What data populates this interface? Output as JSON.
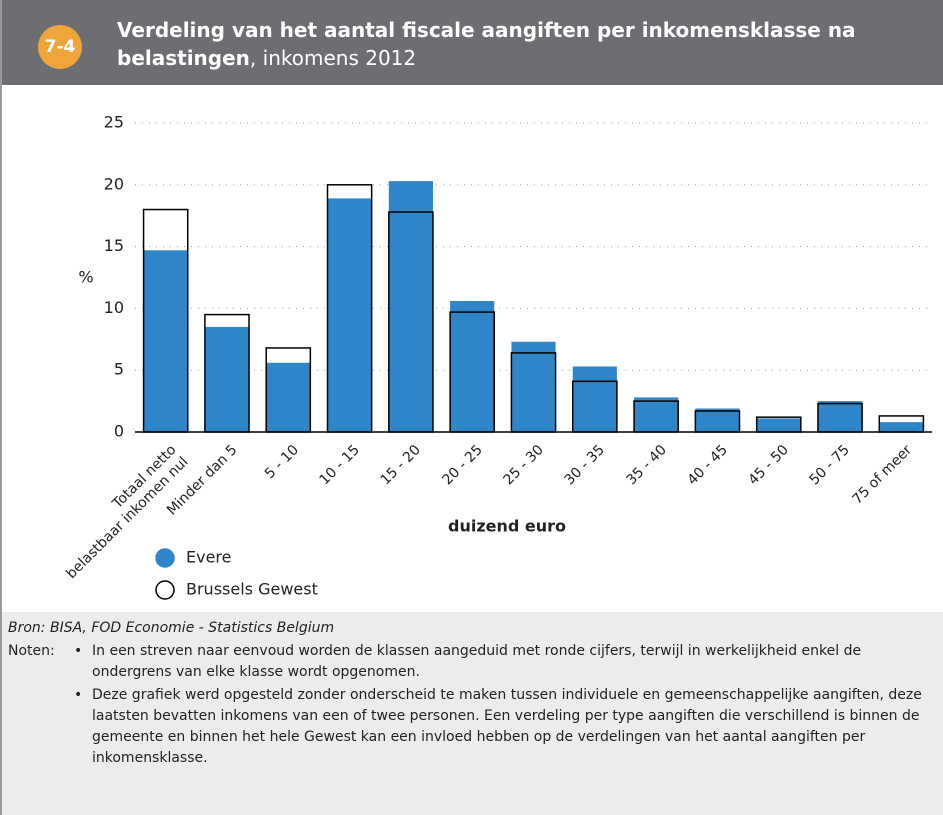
{
  "header": {
    "badge": "7-4",
    "title": "Verdeling van het aantal fiscale aangiften per inkomensklasse na belastingen",
    "subtitle": ", inkomens 2012"
  },
  "chart_data": {
    "type": "bar",
    "y_label": "%",
    "x_label": "duizend euro",
    "categories": [
      "Totaal netto\nbelastbaar inkomen nul",
      "Minder dan 5",
      "5 - 10",
      "10 - 15",
      "15 - 20",
      "20 - 25",
      "25 - 30",
      "30 - 35",
      "35 - 40",
      "40 - 45",
      "45 - 50",
      "50 - 75",
      "75 of meer"
    ],
    "series": [
      {
        "name": "Evere",
        "color": "#2e86c8",
        "values": [
          14.7,
          8.5,
          5.6,
          18.9,
          20.3,
          10.6,
          7.3,
          5.3,
          2.8,
          1.9,
          1.1,
          2.5,
          0.8
        ]
      },
      {
        "name": "Brussels Gewest",
        "color": "#000000",
        "values": [
          18.0,
          9.5,
          6.8,
          20.0,
          17.8,
          9.7,
          6.4,
          4.1,
          2.5,
          1.7,
          1.2,
          2.3,
          1.3
        ]
      }
    ],
    "ylim": [
      0,
      25
    ],
    "yticks": [
      0,
      5,
      10,
      15,
      20,
      25
    ],
    "grid": true
  },
  "footer": {
    "source": "Bron: BISA, FOD Economie - Statistics Belgium",
    "notes_label": "Noten:",
    "notes": [
      "In een streven naar eenvoud worden de klassen aangeduid met ronde cijfers, terwijl in werkelijkheid enkel de ondergrens van elke klasse wordt opgenomen.",
      "Deze grafiek werd opgesteld zonder onderscheid te maken tussen individuele en gemeenschappelijke aangiften, deze laatsten bevatten inkomens van een of twee personen. Een verdeling per type aangiften die verschillend is binnen de gemeente en binnen het hele Gewest kan een invloed hebben op de verdelingen van het aantal aangiften per inkomensklasse."
    ]
  }
}
